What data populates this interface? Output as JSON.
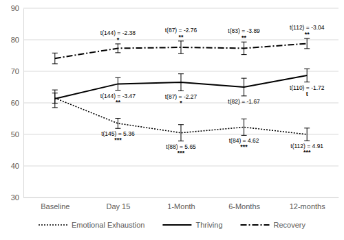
{
  "chart_data": {
    "type": "line",
    "categories": [
      "Baseline",
      "Day 15",
      "1-Month",
      "6-Months",
      "12-months"
    ],
    "ylim": [
      30,
      90
    ],
    "yticks": [
      30,
      40,
      50,
      60,
      70,
      80,
      90
    ],
    "grid": true,
    "legend": "bottom",
    "series": [
      {
        "name": "Emotional Exhaustion",
        "color": "#000000",
        "line_style": "dotted",
        "values": [
          61.5,
          53.5,
          50.5,
          52.3,
          50.0
        ],
        "errors": [
          1.6,
          1.6,
          2.6,
          2.6,
          2.0
        ],
        "annotations": [
          null,
          {
            "text": "t(145) = 5.36",
            "sig": "***"
          },
          {
            "text": "t(88) = 5.65",
            "sig": "***"
          },
          {
            "text": "t(84) = 4.62",
            "sig": "***"
          },
          {
            "text": "t(112) = 4.91",
            "sig": "***"
          }
        ]
      },
      {
        "name": "Thriving",
        "color": "#000000",
        "line_style": "solid",
        "values": [
          61.3,
          66.0,
          66.5,
          65.0,
          68.7
        ],
        "errors": [
          2.8,
          2.0,
          2.7,
          2.8,
          2.1
        ],
        "annotations": [
          null,
          {
            "text": "t(144) = -3.47",
            "sig": "**"
          },
          {
            "text": "t(87) = -2.27",
            "sig": "*"
          },
          {
            "text": "t(82) = -1.67"
          },
          {
            "text": "t(110) = -1.72",
            "sig": "t"
          }
        ]
      },
      {
        "name": "Recovery",
        "color": "#000000",
        "line_style": "dashdot",
        "values": [
          74.1,
          77.3,
          77.6,
          77.3,
          78.8
        ],
        "errors": [
          1.7,
          1.4,
          2.0,
          2.0,
          1.6
        ],
        "annotations": [
          null,
          {
            "text": "t(144) = -2.38",
            "sig": "*"
          },
          {
            "text": "t(87) = -2.76",
            "sig": "**"
          },
          {
            "text": "t(83) = -3.89",
            "sig": "**"
          },
          {
            "text": "t(112) = -3.04",
            "sig": "**"
          }
        ]
      }
    ]
  }
}
